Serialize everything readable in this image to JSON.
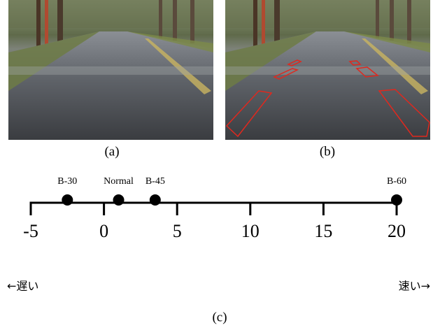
{
  "panels": [
    {
      "label": "(a)"
    },
    {
      "label": "(b)"
    }
  ],
  "chart_data": {
    "type": "numberline",
    "xlim": [
      -5,
      20
    ],
    "xticks": [
      -5,
      0,
      5,
      10,
      15,
      20
    ],
    "points": [
      {
        "name": "B-30",
        "x": -2.5
      },
      {
        "name": "Normal",
        "x": 1
      },
      {
        "name": "B-45",
        "x": 3.5
      },
      {
        "name": "B-60",
        "x": 20
      }
    ],
    "left_label": "←遅い",
    "right_label": "速い→",
    "caption": "(c)"
  }
}
